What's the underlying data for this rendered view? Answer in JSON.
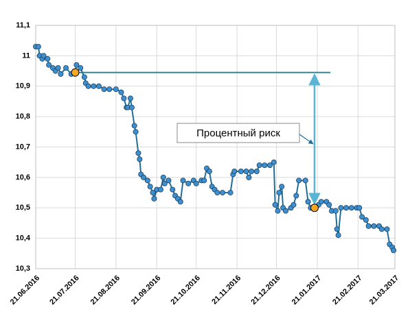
{
  "chart_data": {
    "type": "line",
    "x": [
      "21.06.2016",
      "23.06.2016",
      "24.06.2016",
      "26.06.2016",
      "27.06.2016",
      "30.06.2016",
      "01.07.2016",
      "04.07.2016",
      "06.07.2016",
      "08.07.2016",
      "10.07.2016",
      "14.07.2016",
      "18.07.2016",
      "21.07.2016",
      "22.07.2016",
      "25.07.2016",
      "28.07.2016",
      "29.07.2016",
      "31.07.2016",
      "04.08.2016",
      "08.08.2016",
      "12.08.2016",
      "16.08.2016",
      "21.08.2016",
      "25.08.2016",
      "27.08.2016",
      "29.08.2016",
      "30.08.2016",
      "01.09.2016",
      "02.09.2016",
      "04.09.2016",
      "05.09.2016",
      "07.09.2016",
      "08.09.2016",
      "09.09.2016",
      "11.09.2016",
      "14.09.2016",
      "16.09.2016",
      "18.09.2016",
      "19.09.2016",
      "21.09.2016",
      "24.09.2016",
      "26.09.2016",
      "27.09.2016",
      "30.09.2016",
      "03.10.2016",
      "05.10.2016",
      "07.10.2016",
      "09.10.2016",
      "11.10.2016",
      "15.10.2016",
      "19.10.2016",
      "21.10.2016",
      "25.10.2016",
      "27.10.2016",
      "29.10.2016",
      "31.10.2016",
      "02.11.2016",
      "04.11.2016",
      "06.11.2016",
      "10.11.2016",
      "16.11.2016",
      "18.11.2016",
      "19.11.2016",
      "24.11.2016",
      "28.11.2016",
      "30.11.2016",
      "02.12.2016",
      "06.12.2016",
      "08.12.2016",
      "12.12.2016",
      "16.12.2016",
      "19.12.2016",
      "20.12.2016",
      "22.12.2016",
      "23.12.2016",
      "25.12.2016",
      "26.12.2016",
      "28.12.2016",
      "01.01.2017",
      "03.01.2017",
      "05.01.2017",
      "07.01.2017",
      "12.01.2017",
      "14.01.2017",
      "16.01.2017",
      "19.01.2017",
      "22.01.2017",
      "24.01.2017",
      "28.01.2017",
      "30.01.2017",
      "01.02.2017",
      "04.02.2017",
      "05.02.2017",
      "06.02.2017",
      "08.02.2017",
      "12.02.2017",
      "16.02.2017",
      "20.02.2017",
      "22.02.2017",
      "24.02.2017",
      "27.02.2017",
      "01.03.2017",
      "05.03.2017",
      "09.03.2017",
      "11.03.2017",
      "15.03.2017",
      "17.03.2017",
      "19.03.2017",
      "20.03.2017"
    ],
    "series": [
      {
        "color": "#1f6e99",
        "marker_color": "#3d8fd0",
        "values": [
          11.03,
          11.03,
          11.0,
          10.99,
          11.0,
          10.99,
          10.97,
          10.96,
          10.95,
          10.96,
          10.94,
          10.96,
          10.94,
          10.945,
          10.97,
          10.96,
          10.93,
          10.91,
          10.9,
          10.9,
          10.9,
          10.89,
          10.89,
          10.89,
          10.88,
          10.86,
          10.83,
          10.83,
          10.86,
          10.83,
          10.77,
          10.75,
          10.68,
          10.66,
          10.61,
          10.6,
          10.59,
          10.57,
          10.55,
          10.53,
          10.56,
          10.56,
          10.6,
          10.58,
          10.59,
          10.56,
          10.54,
          10.53,
          10.52,
          10.59,
          10.58,
          10.59,
          10.58,
          10.59,
          10.59,
          10.63,
          10.62,
          10.57,
          10.56,
          10.55,
          10.55,
          10.55,
          10.61,
          10.62,
          10.62,
          10.62,
          10.6,
          10.62,
          10.62,
          10.64,
          10.64,
          10.64,
          10.65,
          10.51,
          10.49,
          10.55,
          10.57,
          10.5,
          10.49,
          10.5,
          10.51,
          10.54,
          10.59,
          10.59,
          10.52,
          10.5,
          10.5,
          10.51,
          10.52,
          10.52,
          10.51,
          10.49,
          10.49,
          10.43,
          10.41,
          10.5,
          10.5,
          10.5,
          10.5,
          10.5,
          10.47,
          10.46,
          10.44,
          10.44,
          10.44,
          10.43,
          10.43,
          10.38,
          10.37,
          10.36
        ]
      }
    ],
    "xlim": [
      "21.06.2016",
      "21.03.2017"
    ],
    "xticks": [
      "21.06.2016",
      "21.07.2016",
      "21.08.2016",
      "21.09.2016",
      "21.10.2016",
      "21.11.2016",
      "21.12.2016",
      "21.01.2017",
      "21.02.2017",
      "21.03.2017"
    ],
    "ylim": [
      10.3,
      11.1
    ],
    "yticks": [
      {
        "value": 10.3,
        "label": "10,3"
      },
      {
        "value": 10.4,
        "label": "10,4"
      },
      {
        "value": 10.5,
        "label": "10,5"
      },
      {
        "value": 10.6,
        "label": "10,6"
      },
      {
        "value": 10.7,
        "label": "10,7"
      },
      {
        "value": 10.8,
        "label": "10,8"
      },
      {
        "value": 10.9,
        "label": "10,9"
      },
      11,
      {
        "value": 11.1,
        "label": "11,1"
      }
    ],
    "grid": true,
    "markers": [
      {
        "x": "21.07.2016",
        "value": 10.945,
        "color": "#f5a623"
      },
      {
        "x": "21.01.2017",
        "value": 10.5,
        "color": "#f5a623"
      }
    ],
    "risk_line": {
      "from": "21.07.2016",
      "to": "31.01.2017",
      "value": 10.945,
      "color": "#2a8a9a"
    },
    "annotation": {
      "text": "Процентный риск",
      "color": "#5ab4d6"
    }
  }
}
